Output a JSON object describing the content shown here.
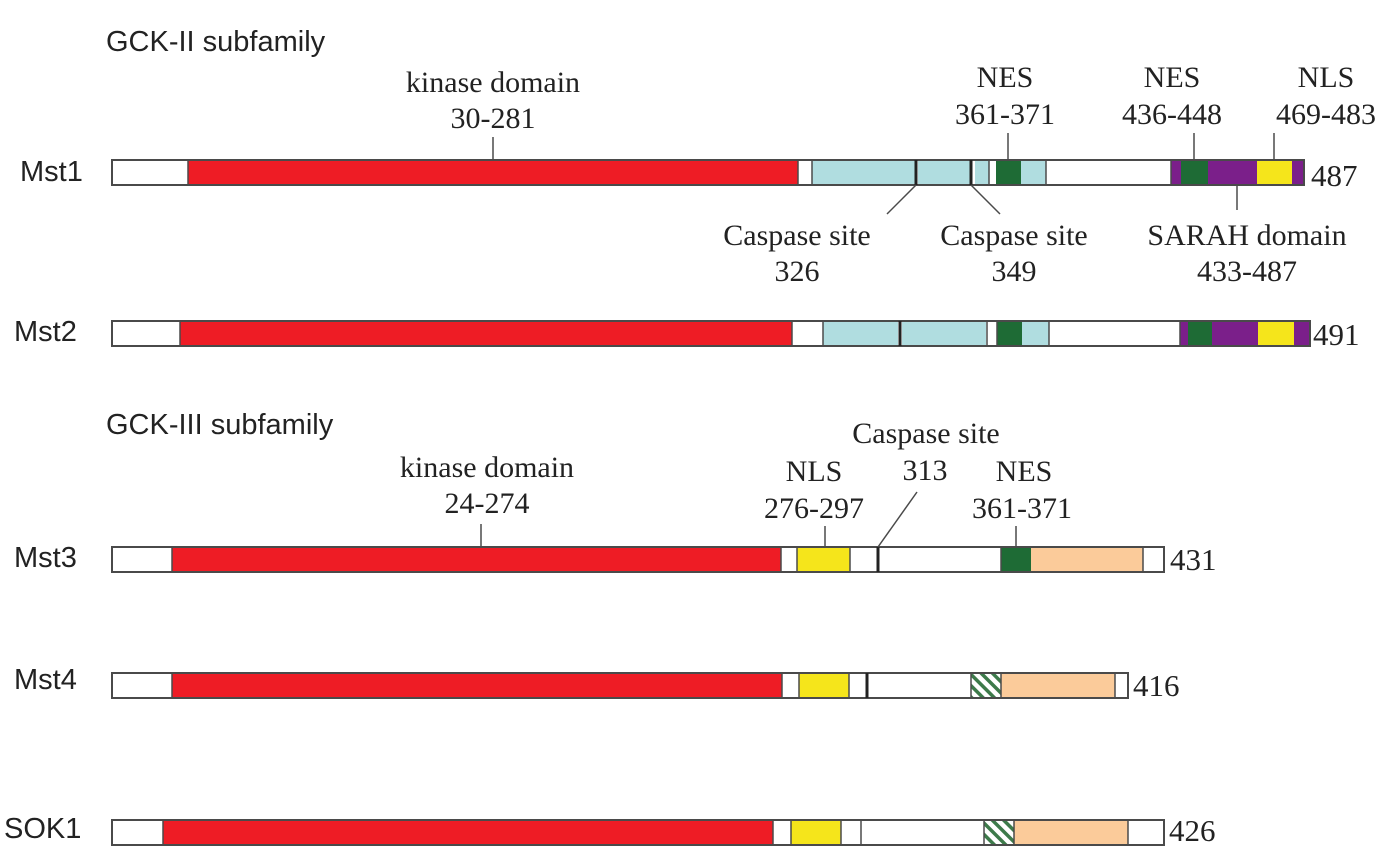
{
  "colors": {
    "kinase": "#ee1c25",
    "caspase_region": "#b0dde0",
    "nes": "#1e6b35",
    "sarah": "#7b1f8a",
    "nls": "#f5e51b",
    "cterm": "#fbcb9a",
    "outline": "#4a4a4a",
    "hatch": "#3d7a4a"
  },
  "sections": {
    "gck2": "GCK-II subfamily",
    "gck3": "GCK-III subfamily"
  },
  "proteins": [
    {
      "id": "mst1",
      "name": "Mst1",
      "length": "487",
      "segments": [
        {
          "type": "kinase"
        },
        {
          "type": "caspase_region"
        },
        {
          "type": "caspase_region"
        },
        {
          "type": "nes"
        },
        {
          "type": "caspase_region"
        },
        {
          "type": "sarah"
        },
        {
          "type": "nes"
        },
        {
          "type": "sarah"
        },
        {
          "type": "nls"
        },
        {
          "type": "sarah"
        }
      ]
    },
    {
      "id": "mst2",
      "name": "Mst2",
      "length": "491",
      "segments": [
        {
          "type": "kinase"
        },
        {
          "type": "caspase_region"
        },
        {
          "type": "caspase_region"
        },
        {
          "type": "nes"
        },
        {
          "type": "caspase_region"
        },
        {
          "type": "sarah"
        },
        {
          "type": "nes"
        },
        {
          "type": "sarah"
        },
        {
          "type": "nls"
        },
        {
          "type": "sarah"
        }
      ]
    },
    {
      "id": "mst3",
      "name": "Mst3",
      "length": "431",
      "segments": [
        {
          "type": "kinase"
        },
        {
          "type": "nls"
        },
        {
          "type": "nes"
        },
        {
          "type": "cterm"
        }
      ]
    },
    {
      "id": "mst4",
      "name": "Mst4",
      "length": "416",
      "segments": [
        {
          "type": "kinase"
        },
        {
          "type": "nls"
        },
        {
          "type": "hatch"
        },
        {
          "type": "cterm"
        }
      ]
    },
    {
      "id": "sok1",
      "name": "SOK1",
      "length": "426",
      "segments": [
        {
          "type": "kinase"
        },
        {
          "type": "nls"
        },
        {
          "type": "hatch"
        },
        {
          "type": "cterm"
        }
      ]
    }
  ],
  "annotations": {
    "mst1_kinase": {
      "line1": "kinase domain",
      "line2": "30-281"
    },
    "mst1_nes1": {
      "line1": "NES",
      "line2": "361-371"
    },
    "mst1_nes2": {
      "line1": "NES",
      "line2": "436-448"
    },
    "mst1_nls": {
      "line1": "NLS",
      "line2": "469-483"
    },
    "mst1_casp1": {
      "line1": "Caspase site",
      "line2": "326"
    },
    "mst1_casp2": {
      "line1": "Caspase site",
      "line2": "349"
    },
    "mst1_sarah": {
      "line1": "SARAH domain",
      "line2": "433-487"
    },
    "mst3_kinase": {
      "line1": "kinase domain",
      "line2": "24-274"
    },
    "mst3_nls": {
      "line1": "NLS",
      "line2": "276-297"
    },
    "mst3_casp": {
      "line1": "Caspase site",
      "line2": "313"
    },
    "mst3_nes": {
      "line1": "NES",
      "line2": "361-371"
    }
  }
}
